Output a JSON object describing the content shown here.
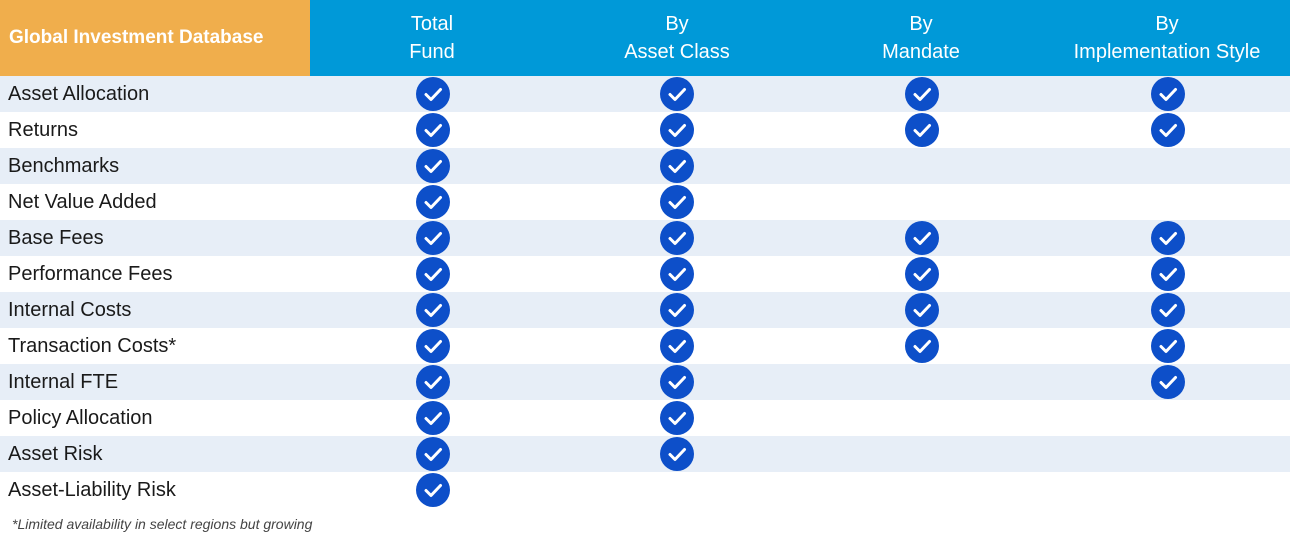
{
  "header": {
    "title": "Global Investment Database",
    "columns": [
      {
        "line1": "Total",
        "line2": "Fund"
      },
      {
        "line1": "By",
        "line2": "Asset Class"
      },
      {
        "line1": "By",
        "line2": "Mandate"
      },
      {
        "line1": "By",
        "line2": "Implementation Style"
      }
    ]
  },
  "rows": [
    {
      "label": "Asset Allocation",
      "checks": [
        true,
        true,
        true,
        true
      ]
    },
    {
      "label": "Returns",
      "checks": [
        true,
        true,
        true,
        true
      ]
    },
    {
      "label": "Benchmarks",
      "checks": [
        true,
        true,
        false,
        false
      ]
    },
    {
      "label": "Net Value Added",
      "checks": [
        true,
        true,
        false,
        false
      ]
    },
    {
      "label": "Base Fees",
      "checks": [
        true,
        true,
        true,
        true
      ]
    },
    {
      "label": "Performance Fees",
      "checks": [
        true,
        true,
        true,
        true
      ]
    },
    {
      "label": "Internal Costs",
      "checks": [
        true,
        true,
        true,
        true
      ]
    },
    {
      "label": "Transaction Costs*",
      "checks": [
        true,
        true,
        true,
        true
      ]
    },
    {
      "label": "Internal FTE",
      "checks": [
        true,
        true,
        false,
        true
      ]
    },
    {
      "label": "Policy Allocation",
      "checks": [
        true,
        true,
        false,
        false
      ]
    },
    {
      "label": "Asset Risk",
      "checks": [
        true,
        true,
        false,
        false
      ]
    },
    {
      "label": "Asset-Liability Risk",
      "checks": [
        true,
        false,
        false,
        false
      ]
    }
  ],
  "footnote": "*Limited availability in select regions but growing",
  "colors": {
    "title_bg": "#F0AE4C",
    "header_bg": "#0099D8",
    "row_shade": "#E7EEF7",
    "check": "#0D4FC9"
  },
  "icons": {
    "check": "check-circle-icon"
  }
}
